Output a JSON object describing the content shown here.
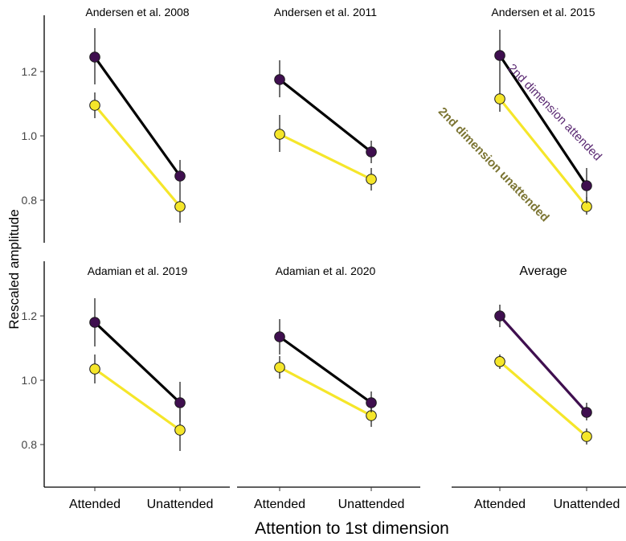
{
  "figure": {
    "ylabel": "Rescaled  amplitude",
    "xlabel": "Attention to 1st dimension",
    "categories": [
      "Attended",
      "Unattended"
    ],
    "y_ticks": [
      "0.8",
      "1.0",
      "1.2"
    ],
    "annotations": {
      "attended": "2nd dimension attended",
      "unattended": "2nd dimension unattended"
    },
    "colors": {
      "attended_point": "#3f0f4f",
      "unattended_point": "#f5e62a",
      "attended_line": "#000000",
      "attended_line_average": "#3f0f4f",
      "unattended_line": "#f5e62a",
      "attended_text": "#5b2a73",
      "unattended_text": "#7b7432"
    }
  },
  "chart_data": [
    {
      "type": "line",
      "title": "Andersen et al. 2008",
      "categories": [
        "Attended",
        "Unattended"
      ],
      "ylim": [
        0.66,
        1.35
      ],
      "series": [
        {
          "name": "2nd dimension attended",
          "values": [
            1.245,
            0.875
          ],
          "err_low": [
            1.16,
            0.83
          ],
          "err_high": [
            1.335,
            0.925
          ]
        },
        {
          "name": "2nd dimension unattended",
          "values": [
            1.095,
            0.78
          ],
          "err_low": [
            1.055,
            0.73
          ],
          "err_high": [
            1.135,
            0.83
          ]
        }
      ]
    },
    {
      "type": "line",
      "title": "Andersen et al. 2011",
      "categories": [
        "Attended",
        "Unattended"
      ],
      "ylim": [
        0.66,
        1.35
      ],
      "series": [
        {
          "name": "2nd dimension attended",
          "values": [
            1.175,
            0.95
          ],
          "err_low": [
            1.12,
            0.915
          ],
          "err_high": [
            1.235,
            0.985
          ]
        },
        {
          "name": "2nd dimension unattended",
          "values": [
            1.005,
            0.865
          ],
          "err_low": [
            0.95,
            0.83
          ],
          "err_high": [
            1.065,
            0.9
          ]
        }
      ]
    },
    {
      "type": "line",
      "title": "Andersen et al. 2015",
      "categories": [
        "Attended",
        "Unattended"
      ],
      "ylim": [
        0.66,
        1.35
      ],
      "series": [
        {
          "name": "2nd dimension attended",
          "values": [
            1.25,
            0.845
          ],
          "err_low": [
            1.165,
            0.79
          ],
          "err_high": [
            1.33,
            0.9
          ]
        },
        {
          "name": "2nd dimension unattended",
          "values": [
            1.115,
            0.78
          ],
          "err_low": [
            1.075,
            0.755
          ],
          "err_high": [
            1.165,
            0.81
          ]
        }
      ]
    },
    {
      "type": "line",
      "title": "Adamian et al. 2019",
      "categories": [
        "Attended",
        "Unattended"
      ],
      "ylim": [
        0.66,
        1.35
      ],
      "series": [
        {
          "name": "2nd dimension attended",
          "values": [
            1.18,
            0.93
          ],
          "err_low": [
            1.105,
            0.87
          ],
          "err_high": [
            1.255,
            0.995
          ]
        },
        {
          "name": "2nd dimension unattended",
          "values": [
            1.035,
            0.845
          ],
          "err_low": [
            0.99,
            0.78
          ],
          "err_high": [
            1.08,
            0.91
          ]
        }
      ]
    },
    {
      "type": "line",
      "title": "Adamian et al. 2020",
      "categories": [
        "Attended",
        "Unattended"
      ],
      "ylim": [
        0.66,
        1.35
      ],
      "series": [
        {
          "name": "2nd dimension attended",
          "values": [
            1.135,
            0.93
          ],
          "err_low": [
            1.08,
            0.9
          ],
          "err_high": [
            1.19,
            0.965
          ]
        },
        {
          "name": "2nd dimension unattended",
          "values": [
            1.04,
            0.89
          ],
          "err_low": [
            1.005,
            0.855
          ],
          "err_high": [
            1.075,
            0.92
          ]
        }
      ]
    },
    {
      "type": "line",
      "title": "Average",
      "categories": [
        "Attended",
        "Unattended"
      ],
      "ylim": [
        0.66,
        1.35
      ],
      "series": [
        {
          "name": "2nd dimension attended",
          "values": [
            1.2,
            0.9
          ],
          "err_low": [
            1.165,
            0.875
          ],
          "err_high": [
            1.235,
            0.93
          ]
        },
        {
          "name": "2nd dimension unattended",
          "values": [
            1.058,
            0.825
          ],
          "err_low": [
            1.035,
            0.8
          ],
          "err_high": [
            1.08,
            0.85
          ]
        }
      ]
    }
  ]
}
